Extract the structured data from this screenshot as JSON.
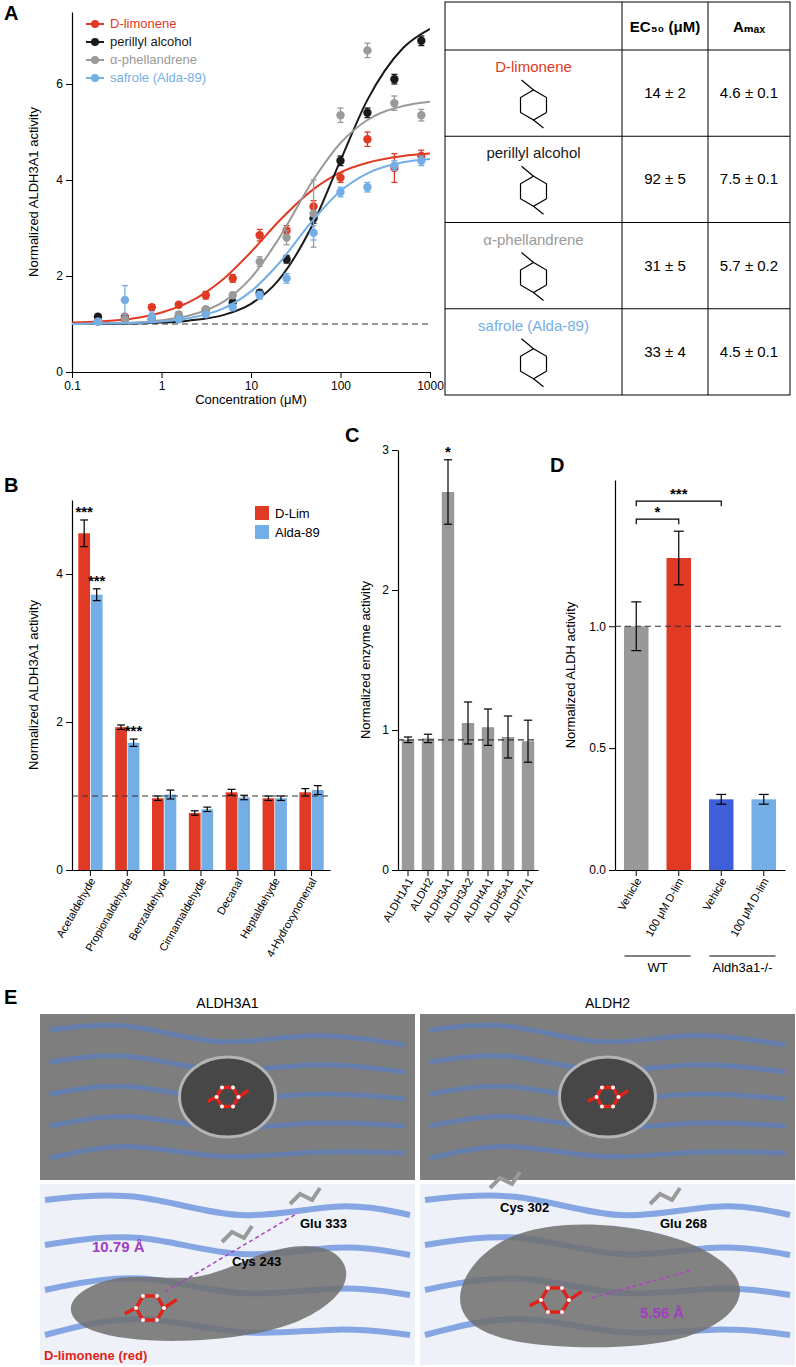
{
  "chart_data": [
    {
      "type": "scatter",
      "title": "A",
      "marker": "circle",
      "xlabel": "Concentration (μM)",
      "ylabel": "Normalized ALDH3A1 activity",
      "x": [
        0.195,
        0.39,
        0.78,
        1.56,
        3.125,
        6.25,
        12.5,
        25,
        50,
        100,
        200,
        400,
        800
      ],
      "xlim": [
        0.1,
        1000
      ],
      "ylim": [
        0,
        7.5
      ],
      "xticks": [
        0.1,
        1,
        10,
        100,
        1000
      ],
      "yticks": [
        0,
        2,
        4,
        6
      ],
      "log": "x",
      "baseline": 1,
      "legend": "upper left",
      "fit_x": [
        0.1,
        0.2,
        0.5,
        1,
        2,
        5,
        10,
        20,
        50,
        100,
        200,
        500,
        1000
      ],
      "series": [
        {
          "name": "D-limonene",
          "color": "#e03a24",
          "values": [
            1.05,
            1.15,
            1.35,
            1.4,
            1.6,
            1.95,
            2.85,
            2.95,
            3.45,
            4.05,
            4.85,
            4.25,
            4.5
          ],
          "errors": [
            0.05,
            0.05,
            0.05,
            0.05,
            0.08,
            0.08,
            0.12,
            0.1,
            0.12,
            0.1,
            0.15,
            0.3,
            0.12
          ],
          "fit": [
            1.03,
            1.05,
            1.12,
            1.24,
            1.45,
            1.95,
            2.5,
            3.12,
            3.81,
            4.16,
            4.36,
            4.5,
            4.55
          ]
        },
        {
          "name": "perillyl alcohol",
          "color": "#1a1a1a",
          "values": [
            1.15,
            1.1,
            1.1,
            1.15,
            1.3,
            1.45,
            1.65,
            2.35,
            3.2,
            4.4,
            5.4,
            6.1,
            6.9
          ],
          "errors": [
            0.05,
            0.05,
            0.05,
            0.05,
            0.05,
            0.06,
            0.06,
            0.08,
            0.1,
            0.1,
            0.1,
            0.1,
            0.1
          ],
          "fit": [
            1.0,
            1.0,
            1.01,
            1.03,
            1.07,
            1.19,
            1.42,
            1.9,
            3.11,
            4.41,
            5.67,
            6.75,
            7.15
          ]
        },
        {
          "name": "α-phellandrene",
          "color": "#9a9a9a",
          "values": [
            1.05,
            1.1,
            1.1,
            1.2,
            1.3,
            1.6,
            2.3,
            2.8,
            3.3,
            5.35,
            6.7,
            5.6,
            5.35
          ],
          "errors": [
            0.05,
            0.05,
            0.05,
            0.05,
            0.05,
            0.06,
            0.1,
            0.15,
            0.7,
            0.15,
            0.15,
            0.15,
            0.12
          ],
          "fit": [
            1.0,
            1.01,
            1.03,
            1.08,
            1.17,
            1.47,
            1.96,
            2.75,
            4.01,
            4.77,
            5.25,
            5.54,
            5.63
          ]
        },
        {
          "name": "safrole (Alda-89)",
          "color": "#73aee6",
          "values": [
            1.05,
            1.5,
            1.15,
            1.1,
            1.2,
            1.35,
            1.6,
            1.95,
            2.9,
            3.75,
            3.85,
            4.3,
            4.4
          ],
          "errors": [
            0.05,
            0.3,
            0.1,
            0.05,
            0.05,
            0.06,
            0.08,
            0.1,
            0.15,
            0.1,
            0.1,
            0.1,
            0.1
          ],
          "fit": [
            1.0,
            1.01,
            1.02,
            1.05,
            1.12,
            1.33,
            1.68,
            2.24,
            3.18,
            3.77,
            4.14,
            4.37,
            4.44
          ]
        }
      ]
    },
    {
      "type": "bar",
      "title": "B",
      "ylabel": "Normalized ALDH3A1 activity",
      "categories": [
        "Acetaldehyde",
        "Propionaldehyde",
        "Benzaldehyde",
        "Cinnamaldehyde",
        "Decanal",
        "Heptaldehyde",
        "4-Hydroxynonenal"
      ],
      "ylim": [
        0,
        5
      ],
      "yticks": [
        0,
        2,
        4
      ],
      "baseline": 1,
      "legend": "upper right",
      "series": [
        {
          "name": "D-Lim",
          "color": "#e03a24",
          "values": [
            4.55,
            1.93,
            0.97,
            0.77,
            1.05,
            0.97,
            1.05
          ],
          "errors": [
            0.18,
            0.03,
            0.03,
            0.03,
            0.04,
            0.03,
            0.05
          ],
          "significance": [
            "***",
            null,
            null,
            null,
            null,
            null,
            null
          ]
        },
        {
          "name": "Alda-89",
          "color": "#73aee6",
          "values": [
            3.72,
            1.72,
            1.02,
            0.82,
            0.98,
            0.97,
            1.08
          ],
          "errors": [
            0.08,
            0.05,
            0.06,
            0.03,
            0.03,
            0.03,
            0.06
          ],
          "significance": [
            "***",
            "***",
            null,
            null,
            null,
            null,
            null
          ]
        }
      ]
    },
    {
      "type": "bar",
      "title": "C",
      "ylabel": "Normalized enzyme activity",
      "categories": [
        "ALDH1A1",
        "ALDH2",
        "ALDH3A1",
        "ALDH3A2",
        "ALDH4A1",
        "ALDH5A1",
        "ALDH7A1"
      ],
      "values": [
        0.93,
        0.94,
        2.7,
        1.05,
        1.02,
        0.95,
        0.92
      ],
      "errors": [
        0.02,
        0.03,
        0.23,
        0.15,
        0.13,
        0.15,
        0.15
      ],
      "significance": [
        null,
        null,
        "*",
        null,
        null,
        null,
        null
      ],
      "color": "#999999",
      "ylim": [
        0,
        3
      ],
      "yticks": [
        0,
        1,
        2,
        3
      ],
      "baseline": 0.93
    },
    {
      "type": "bar",
      "title": "D",
      "ylabel": "Normalized ALDH activity",
      "categories": [
        "Vehicle",
        "100 μM D-lim",
        "Vehicle",
        "100 μM D-lim"
      ],
      "groups": [
        "WT",
        "WT",
        "Aldh3a1-/-",
        "Aldh3a1-/-"
      ],
      "values": [
        1.0,
        1.28,
        0.29,
        0.29
      ],
      "errors": [
        0.1,
        0.11,
        0.02,
        0.02
      ],
      "colors": [
        "#999999",
        "#e03a24",
        "#3f5fd8",
        "#73aee6"
      ],
      "ylim": [
        0,
        1.6
      ],
      "yticks": [
        {
          "value": 0,
          "label": "0.0"
        },
        {
          "value": 0.5,
          "label": "0.5"
        },
        {
          "value": 1,
          "label": "1.0"
        }
      ],
      "baseline": 1,
      "comparisons": [
        {
          "from": 0,
          "to": 1,
          "label": "*"
        },
        {
          "from": 0,
          "to": 2,
          "label": "***"
        }
      ]
    }
  ],
  "table": {
    "columns": [
      "EC₅₀ (μM)",
      "Aₘₐₓ"
    ],
    "rows": [
      {
        "name": "D-limonene",
        "color": "#e03a24",
        "ec50": "14 ± 2",
        "amax": "4.6 ± 0.1"
      },
      {
        "name": "perillyl alcohol",
        "color": "#1a1a1a",
        "ec50": "92 ± 5",
        "amax": "7.5 ± 0.1"
      },
      {
        "name": "α-phellandrene",
        "color": "#9a9a9a",
        "ec50": "31 ± 5",
        "amax": "5.7 ± 0.2"
      },
      {
        "name": "safrole (Alda-89)",
        "color": "#73aee6",
        "ec50": "33 ± 4",
        "amax": "4.5 ± 0.1"
      }
    ]
  },
  "panel_e": {
    "label": "E",
    "structures": [
      {
        "title": "ALDH3A1",
        "residues": [
          "Glu 333",
          "Cys 243"
        ],
        "distance": "10.79 Å",
        "ligand": "D-limonene (red)"
      },
      {
        "title": "ALDH2",
        "residues": [
          "Cys 302",
          "Glu 268"
        ],
        "distance": "5.56 Å"
      }
    ]
  }
}
